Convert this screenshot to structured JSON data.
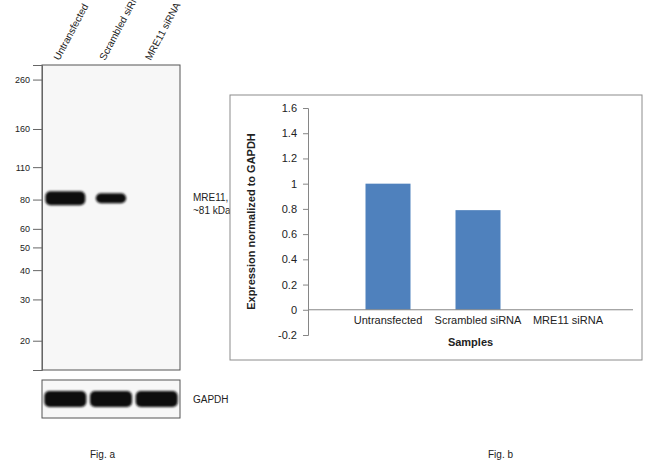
{
  "chart_data": [
    {
      "type": "blot",
      "caption": "Fig. a",
      "categories": [
        "Untransfected",
        "Scrambled siRNA",
        "MRE11 siRNA"
      ],
      "values": [
        81,
        81,
        null
      ],
      "annotations": [
        "MRE11,",
        "~81 kDa"
      ],
      "log": "y",
      "ylim": [
        300,
        15
      ],
      "yticks": [
        260,
        160,
        110,
        80,
        60,
        50,
        40,
        30,
        20
      ],
      "loading_control": {
        "label": "GAPDH",
        "values": [
          1,
          1,
          1
        ]
      }
    },
    {
      "type": "bar",
      "caption": "Fig. b",
      "x_label": "Samples",
      "y_label": "Expression normalized to GAPDH",
      "categories": [
        "Untransfected",
        "Scrambled siRNA",
        "MRE11 siRNA"
      ],
      "values": [
        1,
        0.79,
        0
      ],
      "color": "#4f81bd",
      "ylim": [
        -0.2,
        1.6
      ],
      "yticks": [
        -0.2,
        0,
        0.2,
        0.4,
        0.6,
        0.8,
        1,
        1.2,
        1.4,
        1.6
      ],
      "grid": false
    }
  ]
}
